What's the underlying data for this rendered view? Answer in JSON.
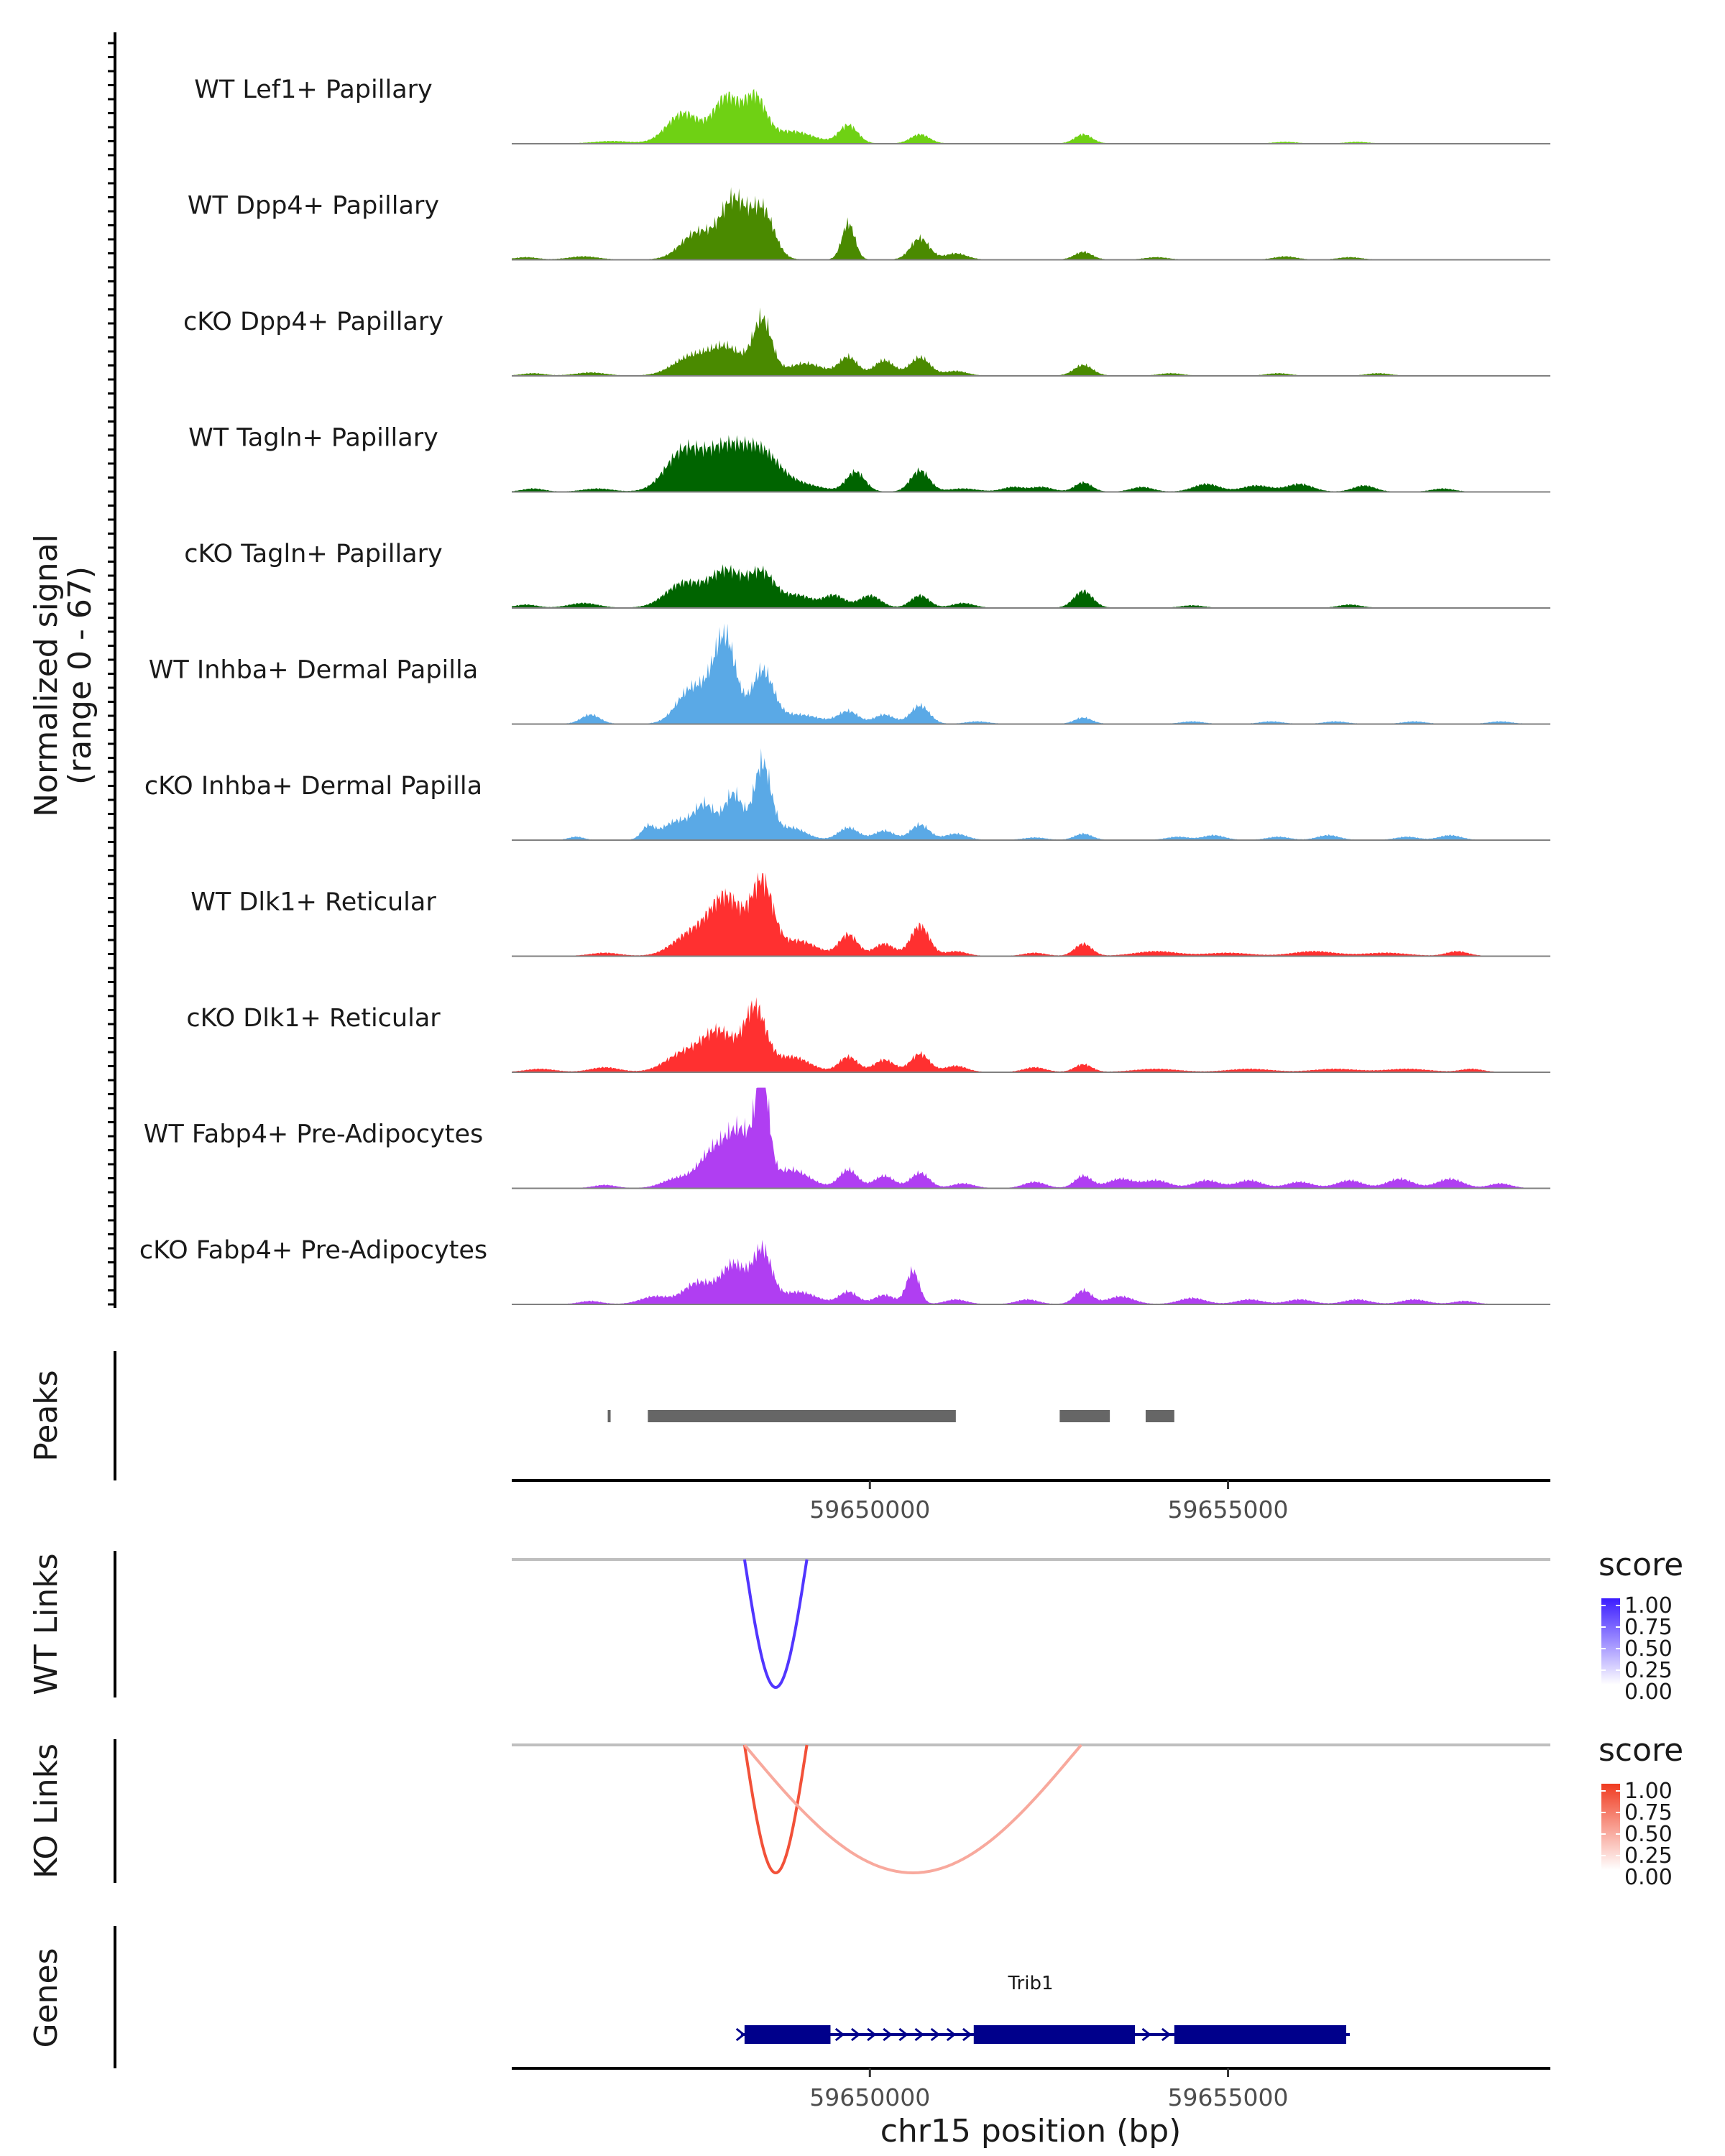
{
  "chart_data": {
    "type": "coverage",
    "title": "",
    "y_axis_label": "Normalized signal",
    "y_axis_range_label": "(range 0 - 67)",
    "ylim": [
      0,
      67
    ],
    "region": {
      "chrom": "chr15",
      "start": 59645000,
      "end": 59659500
    },
    "xlabel": "chr15 position (bp)",
    "x_ticks": [
      59650000,
      59655000
    ],
    "x_tick_labels": [
      "59650000",
      "59655000"
    ],
    "tracks": [
      {
        "name": "WT Lef1+ Papillary",
        "color": "#6fd114",
        "peaks": [
          [
            59646400,
            1.5,
            250
          ],
          [
            59647400,
            20,
            230
          ],
          [
            59648000,
            30,
            180
          ],
          [
            59648400,
            28,
            150
          ],
          [
            59648900,
            8,
            300
          ],
          [
            59649700,
            12,
            130
          ],
          [
            59650700,
            6,
            130
          ],
          [
            59652980,
            6,
            120
          ],
          [
            59655800,
            1,
            150
          ],
          [
            59656800,
            1,
            150
          ]
        ]
      },
      {
        "name": "WT Dpp4+ Papillary",
        "color": "#4a8a00",
        "peaks": [
          [
            59645200,
            1.5,
            150
          ],
          [
            59646000,
            2,
            200
          ],
          [
            59647600,
            18,
            230
          ],
          [
            59648100,
            38,
            180
          ],
          [
            59648500,
            32,
            160
          ],
          [
            59649700,
            24,
            90
          ],
          [
            59650700,
            14,
            130
          ],
          [
            59651200,
            4,
            150
          ],
          [
            59652980,
            5,
            120
          ],
          [
            59654000,
            1.5,
            150
          ],
          [
            59655800,
            2,
            150
          ],
          [
            59656700,
            1.5,
            150
          ]
        ]
      },
      {
        "name": "cKO Dpp4+ Papillary",
        "color": "#4a8a00",
        "peaks": [
          [
            59645300,
            1.5,
            150
          ],
          [
            59646100,
            2,
            200
          ],
          [
            59647500,
            12,
            250
          ],
          [
            59648000,
            18,
            230
          ],
          [
            59648500,
            36,
            130
          ],
          [
            59649100,
            8,
            250
          ],
          [
            59649700,
            12,
            130
          ],
          [
            59650200,
            10,
            140
          ],
          [
            59650700,
            12,
            140
          ],
          [
            59651200,
            3,
            150
          ],
          [
            59652980,
            7,
            130
          ],
          [
            59654200,
            1.5,
            150
          ],
          [
            59655700,
            1.5,
            150
          ],
          [
            59657100,
            1.5,
            150
          ]
        ]
      },
      {
        "name": "WT Tagln+ Papillary",
        "color": "#006400",
        "peaks": [
          [
            59645300,
            2,
            150
          ],
          [
            59646200,
            2,
            200
          ],
          [
            59647400,
            26,
            250
          ],
          [
            59648000,
            28,
            280
          ],
          [
            59648500,
            22,
            240
          ],
          [
            59649000,
            5,
            300
          ],
          [
            59649800,
            13,
            130
          ],
          [
            59650700,
            14,
            130
          ],
          [
            59651300,
            2,
            200
          ],
          [
            59652000,
            3,
            150
          ],
          [
            59652400,
            3,
            150
          ],
          [
            59652980,
            6,
            120
          ],
          [
            59653800,
            3,
            150
          ],
          [
            59654700,
            5,
            180
          ],
          [
            59655400,
            4,
            200
          ],
          [
            59656000,
            5,
            180
          ],
          [
            59656900,
            4,
            150
          ],
          [
            59658000,
            2,
            150
          ]
        ]
      },
      {
        "name": "cKO Tagln+ Papillary",
        "color": "#006400",
        "peaks": [
          [
            59645200,
            2,
            150
          ],
          [
            59646000,
            3,
            200
          ],
          [
            59647400,
            16,
            250
          ],
          [
            59648000,
            24,
            230
          ],
          [
            59648500,
            22,
            180
          ],
          [
            59649000,
            8,
            200
          ],
          [
            59649500,
            8,
            150
          ],
          [
            59650000,
            8,
            150
          ],
          [
            59650700,
            8,
            130
          ],
          [
            59651300,
            3,
            150
          ],
          [
            59652980,
            11,
            130
          ],
          [
            59654500,
            1.5,
            150
          ],
          [
            59656700,
            2,
            150
          ]
        ]
      },
      {
        "name": "WT Inhba+ Dermal Papilla",
        "color": "#5aa9e6",
        "peaks": [
          [
            59646100,
            6,
            130
          ],
          [
            59647500,
            22,
            200
          ],
          [
            59647900,
            25,
            180
          ],
          [
            59648000,
            36,
            140
          ],
          [
            59648500,
            34,
            150
          ],
          [
            59649000,
            6,
            300
          ],
          [
            59649700,
            8,
            140
          ],
          [
            59650200,
            6,
            140
          ],
          [
            59650700,
            12,
            130
          ],
          [
            59651500,
            1.5,
            150
          ],
          [
            59652980,
            4,
            120
          ],
          [
            59654500,
            1.5,
            150
          ],
          [
            59655600,
            1.5,
            150
          ],
          [
            59656500,
            1.5,
            150
          ],
          [
            59657600,
            1.5,
            150
          ],
          [
            59658800,
            1.5,
            150
          ]
        ]
      },
      {
        "name": "cKO Inhba+ Dermal Papilla",
        "color": "#5aa9e6",
        "peaks": [
          [
            59645900,
            2,
            100
          ],
          [
            59646900,
            8,
            90
          ],
          [
            59647300,
            12,
            200
          ],
          [
            59647700,
            22,
            150
          ],
          [
            59648100,
            30,
            130
          ],
          [
            59648500,
            50,
            120
          ],
          [
            59648900,
            8,
            200
          ],
          [
            59649700,
            8,
            140
          ],
          [
            59650200,
            6,
            140
          ],
          [
            59650700,
            10,
            130
          ],
          [
            59651200,
            4,
            150
          ],
          [
            59652300,
            1.5,
            150
          ],
          [
            59652980,
            4,
            120
          ],
          [
            59654300,
            2,
            150
          ],
          [
            59654800,
            3,
            150
          ],
          [
            59655700,
            2,
            150
          ],
          [
            59656400,
            3,
            150
          ],
          [
            59657500,
            2,
            150
          ],
          [
            59658100,
            3,
            150
          ]
        ]
      },
      {
        "name": "WT Dlk1+ Reticular",
        "color": "#ff3030",
        "peaks": [
          [
            59646300,
            2,
            200
          ],
          [
            59647500,
            14,
            250
          ],
          [
            59648000,
            38,
            230
          ],
          [
            59648500,
            46,
            150
          ],
          [
            59649000,
            10,
            250
          ],
          [
            59649700,
            14,
            130
          ],
          [
            59650200,
            8,
            140
          ],
          [
            59650700,
            20,
            130
          ],
          [
            59651200,
            3,
            150
          ],
          [
            59652300,
            2,
            150
          ],
          [
            59652980,
            8,
            120
          ],
          [
            59654000,
            3,
            300
          ],
          [
            59655000,
            2,
            300
          ],
          [
            59656200,
            3,
            300
          ],
          [
            59657200,
            2,
            300
          ],
          [
            59658200,
            3,
            150
          ]
        ]
      },
      {
        "name": "cKO Dlk1+ Reticular",
        "color": "#ff3030",
        "peaks": [
          [
            59645400,
            2,
            200
          ],
          [
            59646300,
            3,
            200
          ],
          [
            59647400,
            12,
            250
          ],
          [
            59647900,
            26,
            230
          ],
          [
            59648400,
            40,
            150
          ],
          [
            59648900,
            10,
            250
          ],
          [
            59649700,
            10,
            130
          ],
          [
            59650200,
            8,
            140
          ],
          [
            59650700,
            12,
            130
          ],
          [
            59651200,
            4,
            150
          ],
          [
            59652300,
            3,
            150
          ],
          [
            59652980,
            5,
            120
          ],
          [
            59654000,
            2,
            300
          ],
          [
            59655300,
            2,
            300
          ],
          [
            59656500,
            2,
            300
          ],
          [
            59657500,
            2,
            300
          ],
          [
            59658400,
            2,
            150
          ]
        ]
      },
      {
        "name": "WT Fabp4+ Pre-Adipocytes",
        "color": "#b03ef2",
        "peaks": [
          [
            59646300,
            2,
            150
          ],
          [
            59647300,
            6,
            200
          ],
          [
            59647800,
            22,
            200
          ],
          [
            59648200,
            36,
            200
          ],
          [
            59648500,
            65,
            90
          ],
          [
            59648900,
            12,
            250
          ],
          [
            59649700,
            12,
            130
          ],
          [
            59650200,
            8,
            140
          ],
          [
            59650700,
            10,
            130
          ],
          [
            59651300,
            3,
            150
          ],
          [
            59652300,
            4,
            150
          ],
          [
            59652980,
            8,
            120
          ],
          [
            59653500,
            6,
            180
          ],
          [
            59654000,
            5,
            180
          ],
          [
            59654700,
            5,
            180
          ],
          [
            59655300,
            5,
            180
          ],
          [
            59656000,
            4,
            180
          ],
          [
            59656700,
            5,
            180
          ],
          [
            59657400,
            6,
            180
          ],
          [
            59658100,
            6,
            180
          ],
          [
            59658800,
            3,
            150
          ]
        ]
      },
      {
        "name": "cKO Fabp4+ Pre-Adipocytes",
        "color": "#b03ef2",
        "peaks": [
          [
            59646100,
            2,
            150
          ],
          [
            59647000,
            5,
            200
          ],
          [
            59647600,
            14,
            200
          ],
          [
            59648100,
            26,
            180
          ],
          [
            59648500,
            34,
            130
          ],
          [
            59649000,
            8,
            250
          ],
          [
            59649700,
            8,
            130
          ],
          [
            59650200,
            6,
            140
          ],
          [
            59650600,
            22,
            90
          ],
          [
            59651200,
            3,
            150
          ],
          [
            59652200,
            3,
            150
          ],
          [
            59652980,
            9,
            120
          ],
          [
            59653500,
            5,
            180
          ],
          [
            59654500,
            4,
            180
          ],
          [
            59655300,
            3,
            180
          ],
          [
            59656000,
            3,
            180
          ],
          [
            59656800,
            3,
            180
          ],
          [
            59657600,
            3,
            180
          ],
          [
            59658300,
            2,
            150
          ]
        ]
      }
    ],
    "peaks_track": {
      "label": "Peaks",
      "color": "#666666",
      "intervals": [
        [
          59646340,
          59646380
        ],
        [
          59646900,
          59651200
        ],
        [
          59652650,
          59653350
        ],
        [
          59653850,
          59654250
        ]
      ]
    },
    "links_tracks": [
      {
        "label": "WT Links",
        "legend_title": "score",
        "color_high": "#3b1cff",
        "legend_ticks": [
          "1.00",
          "0.75",
          "0.50",
          "0.25",
          "0.00"
        ],
        "links": [
          {
            "start": 59648250,
            "end": 59649120,
            "score": 0.85
          }
        ]
      },
      {
        "label": "KO Links",
        "legend_title": "score",
        "color_high": "#f03b20",
        "legend_ticks": [
          "1.00",
          "0.75",
          "0.50",
          "0.25",
          "0.00"
        ],
        "links": [
          {
            "start": 59648250,
            "end": 59649120,
            "score": 0.85
          },
          {
            "start": 59648250,
            "end": 59652950,
            "score": 0.25
          }
        ]
      }
    ],
    "genes_track": {
      "label": "Genes",
      "color": "#00008b",
      "gene_name": "Trib1",
      "strand": "+",
      "span": [
        59648200,
        59656700
      ],
      "exons": [
        [
          59648250,
          59649450
        ],
        [
          59651450,
          59653700
        ],
        [
          59654250,
          59656650
        ]
      ]
    }
  }
}
